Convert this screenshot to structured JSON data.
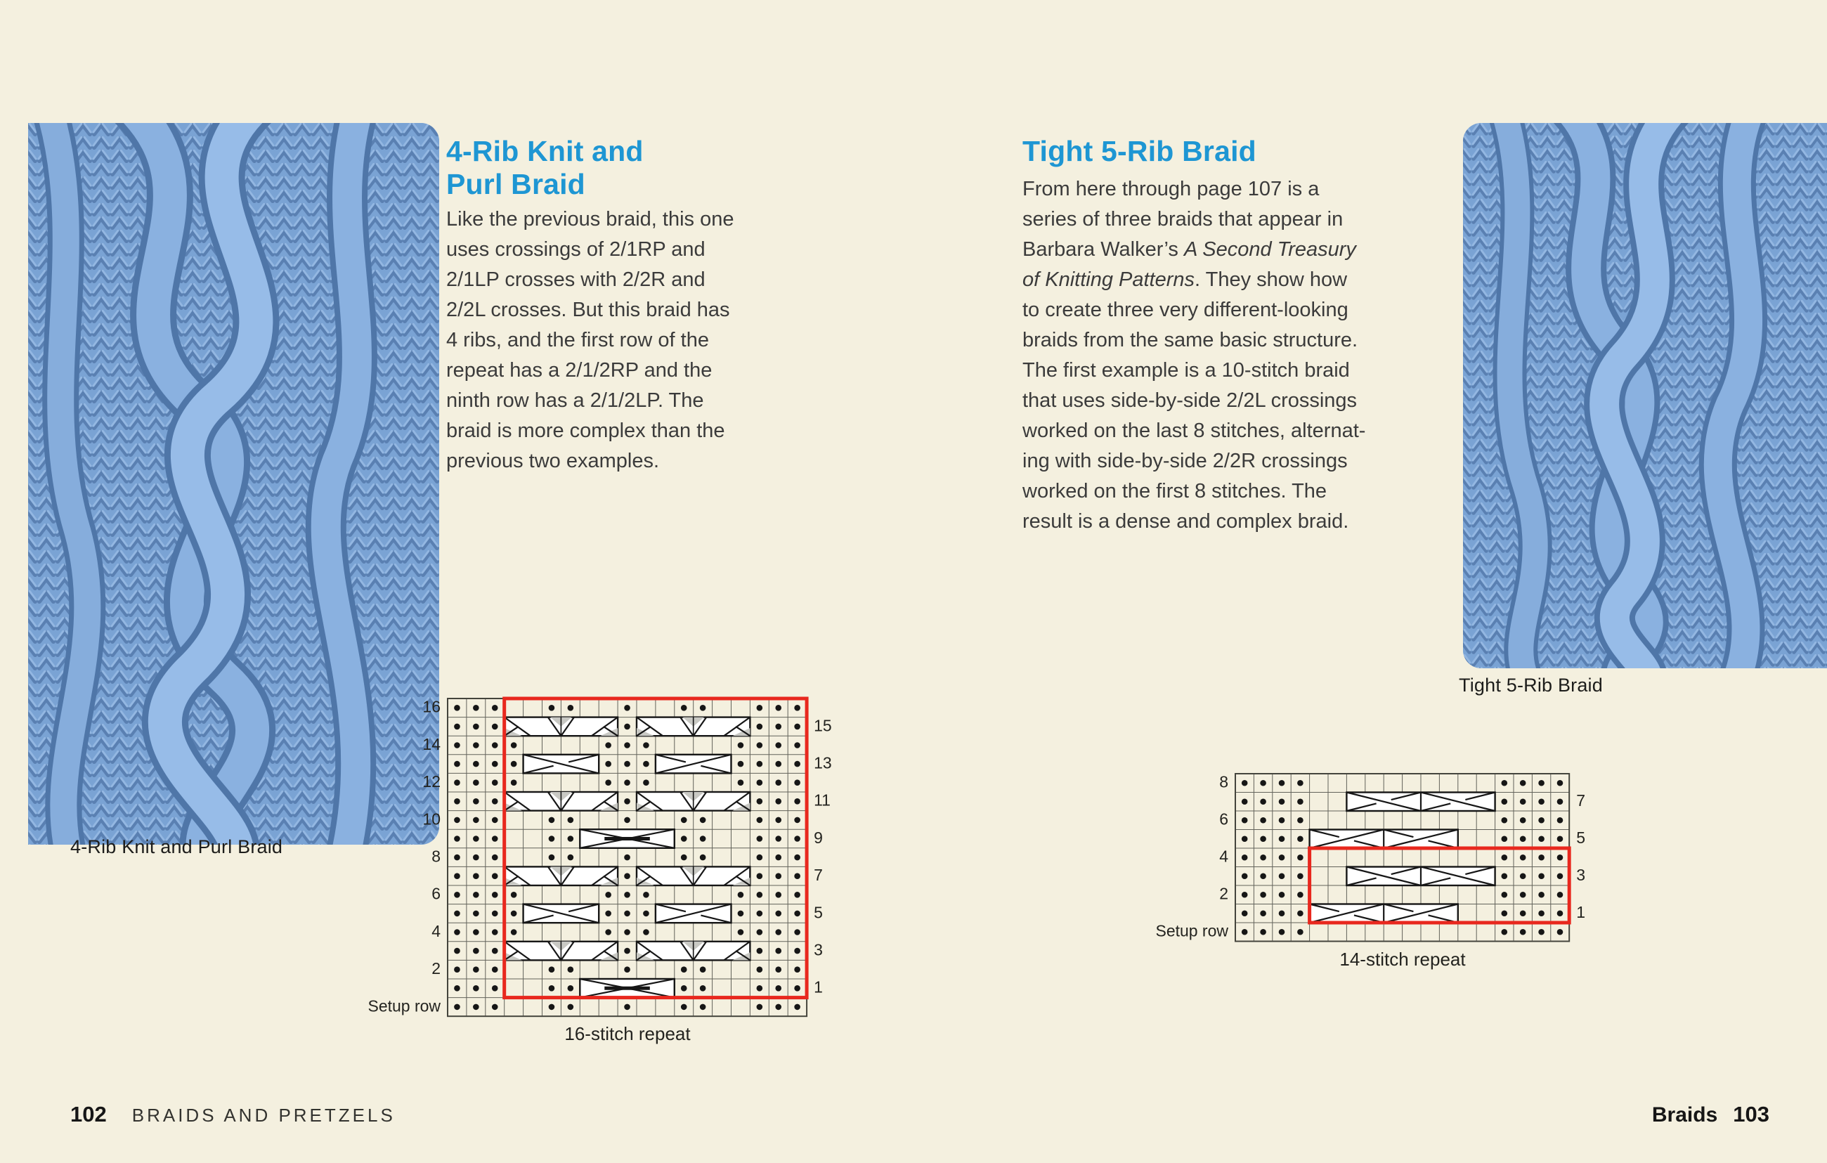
{
  "theme": {
    "background": "#f4f0df",
    "accent_blue": "#1e96d3",
    "repeat_box_red": "#e8281e",
    "text_color": "#3b3b3b",
    "photo_yarn_blue": "#7aa3d4",
    "photo_yarn_shadow": "#4f76a8",
    "photo_yarn_highlight": "#8ab1e0",
    "cable_shade_gray": "#c8c8c3"
  },
  "left_page": {
    "photo_caption": "4-Rib Knit and Purl Braid",
    "section_title": "4-Rib Knit and\nPurl Braid",
    "body": "Like the previous braid, this one\nuses crossings of 2/1RP and\n2/1LP crosses with 2/2R and\n2/2L crosses. But this braid has\n4 ribs, and the first row of the\nrepeat has a 2/1/2RP and the\nninth row has a 2/1/2LP. The\nbraid is more complex than the\nprevious two examples.",
    "chart_caption": "16-stitch repeat",
    "footer_page_number": "102",
    "footer_text": "BRAIDS AND PRETZELS"
  },
  "right_page": {
    "section_title": "Tight 5-Rib Braid",
    "body_part1": "From here through page 107 is a\nseries of three braids that appear in\nBarbara Walker’s ",
    "body_italic": "A Second Treasury\nof Knitting Patterns",
    "body_part3": ". They show how\nto create three very different-looking\nbraids from the same basic structure.\nThe first example is a 10-stitch braid\nthat uses side-by-side 2/2L crossings\nworked on the last 8 stitches, alternat-\ning with side-by-side 2/2R crossings\nworked on the first 8 stitches. The\nresult is a dense and complex braid.",
    "photo_caption": "Tight 5-Rib Braid",
    "chart_caption": "14-stitch repeat",
    "footer_topic": "Braids",
    "footer_page_number": "103"
  },
  "charts": {
    "left": {
      "cols": 19,
      "repeat_box": {
        "c1": 4,
        "c2": 19,
        "r1": 0,
        "r2": 15
      },
      "legend": {
        "dot": "purl stitch",
        "blank": "knit stitch",
        "red_box": "16-stitch repeat"
      },
      "rows": [
        {
          "l": "16",
          "r": "",
          "cells": "...  ..  .  ..  ...",
          "cables": []
        },
        {
          "l": "",
          "r": "15",
          "cells": "...      .      ...",
          "cables": [
            {
              "s": 4,
              "e": 9,
              "t": "rib6"
            },
            {
              "s": 11,
              "e": 16,
              "t": "rib6"
            }
          ]
        },
        {
          "l": "14",
          "r": "",
          "cells": "....    ...    ....",
          "cables": []
        },
        {
          "l": "",
          "r": "13",
          "cells": "....    ...    ....",
          "cables": [
            {
              "s": 5,
              "e": 8,
              "t": "x4"
            },
            {
              "s": 12,
              "e": 15,
              "t": "x4m"
            }
          ]
        },
        {
          "l": "12",
          "r": "",
          "cells": "....    ...    ....",
          "cables": []
        },
        {
          "l": "",
          "r": "11",
          "cells": "...      .      ...",
          "cables": [
            {
              "s": 4,
              "e": 9,
              "t": "rib6"
            },
            {
              "s": 11,
              "e": 16,
              "t": "rib6"
            }
          ]
        },
        {
          "l": "10",
          "r": "",
          "cells": "...  ..  .  ..  ...",
          "cables": []
        },
        {
          "l": "",
          "r": "9",
          "cells": "...  ..     ..  ...",
          "cables": [
            {
              "s": 8,
              "e": 12,
              "t": "x5"
            }
          ]
        },
        {
          "l": "8",
          "r": "",
          "cells": "...  ..  .  ..  ...",
          "cables": []
        },
        {
          "l": "",
          "r": "7",
          "cells": "...      .      ...",
          "cables": [
            {
              "s": 4,
              "e": 9,
              "t": "rib6"
            },
            {
              "s": 11,
              "e": 16,
              "t": "rib6"
            }
          ]
        },
        {
          "l": "6",
          "r": "",
          "cells": "....    ...    ....",
          "cables": []
        },
        {
          "l": "",
          "r": "5",
          "cells": "....    ...    ....",
          "cables": [
            {
              "s": 5,
              "e": 8,
              "t": "x4"
            },
            {
              "s": 12,
              "e": 15,
              "t": "x4m"
            }
          ]
        },
        {
          "l": "4",
          "r": "",
          "cells": "....    ...    ....",
          "cables": []
        },
        {
          "l": "",
          "r": "3",
          "cells": "...      .      ...",
          "cables": [
            {
              "s": 4,
              "e": 9,
              "t": "rib6"
            },
            {
              "s": 11,
              "e": 16,
              "t": "rib6"
            }
          ]
        },
        {
          "l": "2",
          "r": "",
          "cells": "...  ..  .  ..  ...",
          "cables": []
        },
        {
          "l": "",
          "r": "1",
          "cells": "...  ..     ..  ...",
          "cables": [
            {
              "s": 8,
              "e": 12,
              "t": "x5"
            }
          ]
        },
        {
          "l": "Setup row",
          "r": "",
          "cells": "...  ..  .  ..  ...",
          "cables": []
        }
      ]
    },
    "right": {
      "cols": 18,
      "repeat_box": {
        "c1": 5,
        "c2": 18,
        "r1": 4,
        "r2": 7
      },
      "legend": {
        "dot": "purl stitch",
        "blank": "knit stitch",
        "red_box": "14-stitch repeat"
      },
      "rows": [
        {
          "l": "8",
          "r": "",
          "cells": "....          ....",
          "cables": []
        },
        {
          "l": "",
          "r": "7",
          "cells": "....          ....",
          "cables": [
            {
              "s": 7,
              "e": 14,
              "t": "braid8L"
            }
          ]
        },
        {
          "l": "6",
          "r": "",
          "cells": "....          ....",
          "cables": []
        },
        {
          "l": "",
          "r": "5",
          "cells": "....          ....",
          "cables": [
            {
              "s": 5,
              "e": 12,
              "t": "braid8R"
            }
          ]
        },
        {
          "l": "4",
          "r": "",
          "cells": "....          ....",
          "cables": []
        },
        {
          "l": "",
          "r": "3",
          "cells": "....          ....",
          "cables": [
            {
              "s": 7,
              "e": 14,
              "t": "braid8L"
            }
          ]
        },
        {
          "l": "2",
          "r": "",
          "cells": "....          ....",
          "cables": []
        },
        {
          "l": "",
          "r": "1",
          "cells": "....          ....",
          "cables": [
            {
              "s": 5,
              "e": 12,
              "t": "braid8R"
            }
          ]
        },
        {
          "l": "Setup row",
          "r": "",
          "cells": "....          ....",
          "cables": []
        }
      ]
    }
  }
}
